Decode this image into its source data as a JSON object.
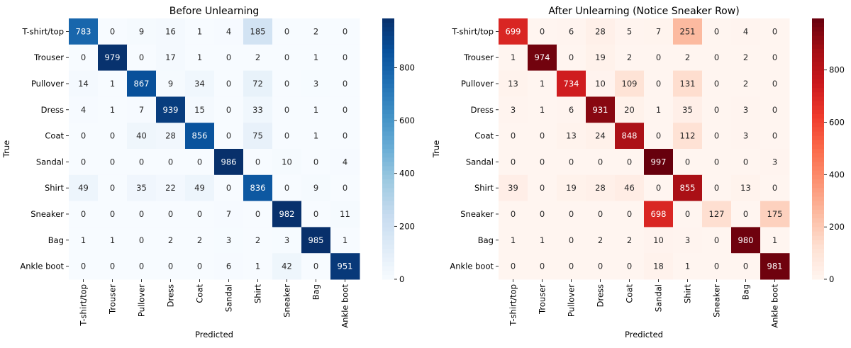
{
  "chart_data": [
    {
      "type": "heatmap",
      "title": "Before Unlearning",
      "xlabel": "Predicted",
      "ylabel": "True",
      "colormap": "Blues",
      "colors": [
        "#f7fbff",
        "#deebf7",
        "#c6dbef",
        "#9ecae1",
        "#6baed6",
        "#4292c6",
        "#2171b5",
        "#08519c",
        "#08306b"
      ],
      "x_categories": [
        "T-shirt/top",
        "Trouser",
        "Pullover",
        "Dress",
        "Coat",
        "Sandal",
        "Shirt",
        "Sneaker",
        "Bag",
        "Ankle boot"
      ],
      "y_categories": [
        "T-shirt/top",
        "Trouser",
        "Pullover",
        "Dress",
        "Coat",
        "Sandal",
        "Shirt",
        "Sneaker",
        "Bag",
        "Ankle boot"
      ],
      "values": [
        [
          783,
          0,
          9,
          16,
          1,
          4,
          185,
          0,
          2,
          0
        ],
        [
          0,
          979,
          0,
          17,
          1,
          0,
          2,
          0,
          1,
          0
        ],
        [
          14,
          1,
          867,
          9,
          34,
          0,
          72,
          0,
          3,
          0
        ],
        [
          4,
          1,
          7,
          939,
          15,
          0,
          33,
          0,
          1,
          0
        ],
        [
          0,
          0,
          40,
          28,
          856,
          0,
          75,
          0,
          1,
          0
        ],
        [
          0,
          0,
          0,
          0,
          0,
          986,
          0,
          10,
          0,
          4
        ],
        [
          49,
          0,
          35,
          22,
          49,
          0,
          836,
          0,
          9,
          0
        ],
        [
          0,
          0,
          0,
          0,
          0,
          7,
          0,
          982,
          0,
          11
        ],
        [
          1,
          1,
          0,
          2,
          2,
          3,
          2,
          3,
          985,
          1
        ],
        [
          0,
          0,
          0,
          0,
          0,
          6,
          1,
          42,
          0,
          951
        ]
      ],
      "vmin": 0,
      "vmax": 986,
      "colorbar_ticks": [
        0,
        200,
        400,
        600,
        800
      ]
    },
    {
      "type": "heatmap",
      "title": "After Unlearning (Notice Sneaker Row)",
      "xlabel": "Predicted",
      "ylabel": "True",
      "colormap": "Reds",
      "colors": [
        "#fff5f0",
        "#fee0d2",
        "#fcbba1",
        "#fc9272",
        "#fb6a4a",
        "#ef3b2c",
        "#cb181d",
        "#a50f15",
        "#67000d"
      ],
      "x_categories": [
        "T-shirt/top",
        "Trouser",
        "Pullover",
        "Dress",
        "Coat",
        "Sandal",
        "Shirt",
        "Sneaker",
        "Bag",
        "Ankle boot"
      ],
      "y_categories": [
        "T-shirt/top",
        "Trouser",
        "Pullover",
        "Dress",
        "Coat",
        "Sandal",
        "Shirt",
        "Sneaker",
        "Bag",
        "Ankle boot"
      ],
      "values": [
        [
          699,
          0,
          6,
          28,
          5,
          7,
          251,
          0,
          4,
          0
        ],
        [
          1,
          974,
          0,
          19,
          2,
          0,
          2,
          0,
          2,
          0
        ],
        [
          13,
          1,
          734,
          10,
          109,
          0,
          131,
          0,
          2,
          0
        ],
        [
          3,
          1,
          6,
          931,
          20,
          1,
          35,
          0,
          3,
          0
        ],
        [
          0,
          0,
          13,
          24,
          848,
          0,
          112,
          0,
          3,
          0
        ],
        [
          0,
          0,
          0,
          0,
          0,
          997,
          0,
          0,
          0,
          3
        ],
        [
          39,
          0,
          19,
          28,
          46,
          0,
          855,
          0,
          13,
          0
        ],
        [
          0,
          0,
          0,
          0,
          0,
          698,
          0,
          127,
          0,
          175
        ],
        [
          1,
          1,
          0,
          2,
          2,
          10,
          3,
          0,
          980,
          1
        ],
        [
          0,
          0,
          0,
          0,
          0,
          18,
          1,
          0,
          0,
          981
        ]
      ],
      "vmin": 0,
      "vmax": 997,
      "colorbar_ticks": [
        0,
        200,
        400,
        600,
        800
      ]
    }
  ]
}
